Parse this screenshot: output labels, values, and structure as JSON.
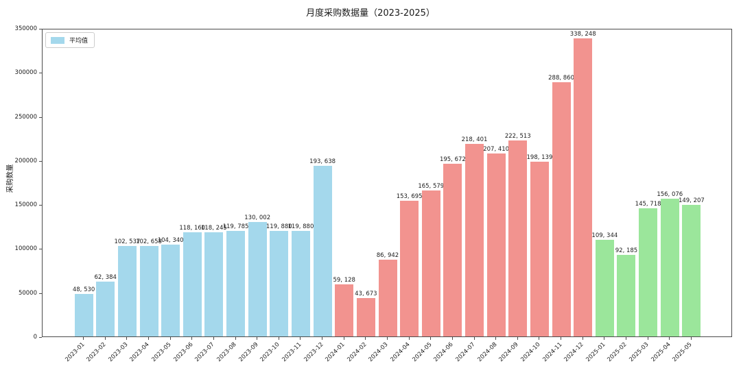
{
  "chart_data": {
    "type": "bar",
    "title": "月度采购数据量（2023-2025）",
    "xlabel": "",
    "ylabel": "采购数量",
    "ylim": [
      0,
      350000
    ],
    "grid": false,
    "legend": {
      "label": "平均值",
      "position": "upper left",
      "swatch_color": "#a4d8ec"
    },
    "yticks": [
      "0",
      "50000",
      "100000",
      "150000",
      "200000",
      "250000",
      "300000",
      "350000"
    ],
    "ytick_values": [
      0,
      50000,
      100000,
      150000,
      200000,
      250000,
      300000,
      350000
    ],
    "categories": [
      "2023-01",
      "2023-02",
      "2023-03",
      "2023-04",
      "2023-05",
      "2023-06",
      "2023-07",
      "2023-08",
      "2023-09",
      "2023-10",
      "2023-11",
      "2023-12",
      "2024-01",
      "2024-02",
      "2024-03",
      "2024-04",
      "2024-05",
      "2024-06",
      "2024-07",
      "2024-08",
      "2024-09",
      "2024-10",
      "2024-11",
      "2024-12",
      "2025-01",
      "2025-02",
      "2025-03",
      "2025-04",
      "2025-05"
    ],
    "values": [
      48530,
      62384,
      102537,
      102658,
      104340,
      118160,
      118245,
      119785,
      130002,
      119880,
      119880,
      193638,
      59128,
      43673,
      86942,
      153695,
      165579,
      195672,
      218401,
      207410,
      222513,
      198139,
      288860,
      338248,
      109344,
      92185,
      145718,
      156076,
      149207
    ],
    "value_labels": [
      "48, 530",
      "62, 384",
      "102, 537",
      "102, 658",
      "104, 340",
      "118, 160",
      "118, 245",
      "119, 785",
      "130, 002",
      "119, 880",
      "119, 880",
      "193, 638",
      "59, 128",
      "43, 673",
      "86, 942",
      "153, 695",
      "165, 579",
      "195, 672",
      "218, 401",
      "207, 410",
      "222, 513",
      "198, 139",
      "288, 860",
      "338, 248",
      "109, 344",
      "92, 185",
      "145, 718",
      "156, 076",
      "149, 207"
    ],
    "series_colors": {
      "2023": "#a4d8ec",
      "2024": "#f2938f",
      "2025": "#9be69b"
    }
  }
}
